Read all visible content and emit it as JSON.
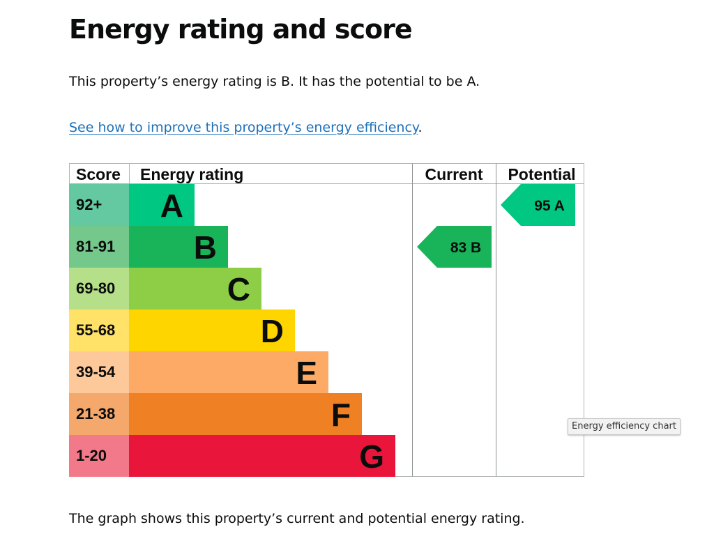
{
  "page": {
    "title": "Energy rating and score",
    "intro": "This property’s energy rating is B. It has the potential to be A.",
    "improve_link": "See how to improve this property’s energy efficiency",
    "improve_suffix": ".",
    "footer": "The graph shows this property’s current and potential energy rating.",
    "tooltip": "Energy efficiency chart"
  },
  "chart_data": {
    "type": "table",
    "headers": {
      "score": "Score",
      "rating": "Energy rating",
      "current": "Current",
      "potential": "Potential"
    },
    "bands": [
      {
        "score": "92+",
        "letter": "A",
        "color": "#00c781",
        "score_bg": "#64c9a0"
      },
      {
        "score": "81-91",
        "letter": "B",
        "color": "#19b459",
        "score_bg": "#74c88c"
      },
      {
        "score": "69-80",
        "letter": "C",
        "color": "#8dce46",
        "score_bg": "#b5df88"
      },
      {
        "score": "55-68",
        "letter": "D",
        "color": "#ffd500",
        "score_bg": "#ffe267"
      },
      {
        "score": "39-54",
        "letter": "E",
        "color": "#fcaa65",
        "score_bg": "#fdc89a"
      },
      {
        "score": "21-38",
        "letter": "F",
        "color": "#ef8023",
        "score_bg": "#f4a86b"
      },
      {
        "score": "1-20",
        "letter": "G",
        "color": "#e9153b",
        "score_bg": "#f27989"
      }
    ],
    "current": {
      "score": 83,
      "letter": "B",
      "band": 1
    },
    "potential": {
      "score": 95,
      "letter": "A",
      "band": 0
    }
  }
}
